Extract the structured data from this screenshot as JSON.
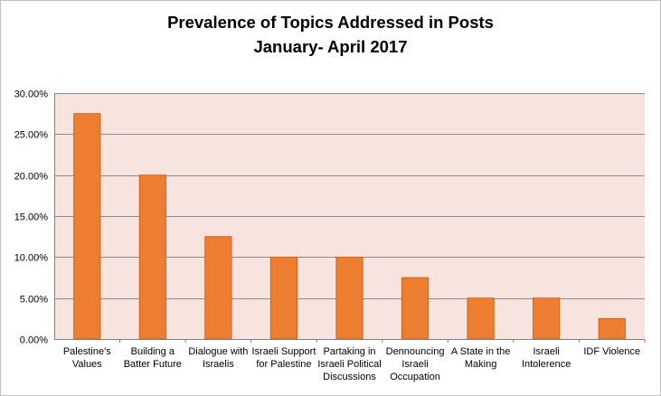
{
  "chart_data": {
    "type": "bar",
    "title": "Prevalence of Topics Addressed in Posts",
    "subtitle": "January- April 2017",
    "categories": [
      [
        "Palestine's",
        "Values"
      ],
      [
        "Building a",
        "Batter Future"
      ],
      [
        "Dialogue with",
        "Israelis"
      ],
      [
        "Israeli Support",
        "for Palestine"
      ],
      [
        "Partaking in",
        "Israeli Political",
        "Discussions"
      ],
      [
        "Dennouncing",
        "Israeli",
        "Occupation"
      ],
      [
        "A State in the",
        "Making"
      ],
      [
        "Israeli",
        "Intolerence"
      ],
      [
        "IDF Violence"
      ]
    ],
    "values": [
      0.275,
      0.2,
      0.125,
      0.1,
      0.1,
      0.075,
      0.05,
      0.05,
      0.025
    ],
    "yticks": [
      "0.00%",
      "5.00%",
      "10.00%",
      "15.00%",
      "20.00%",
      "25.00%",
      "30.00%"
    ],
    "ylim": [
      0,
      0.3
    ],
    "ystep": 0.05,
    "grid": true,
    "legend": "none",
    "colors": {
      "bar": "#ed7d31",
      "bar_edge": "#c55a11",
      "plot_bg": "#f8e4de",
      "grid": "#8c8c8c",
      "axis": "#808080"
    }
  }
}
